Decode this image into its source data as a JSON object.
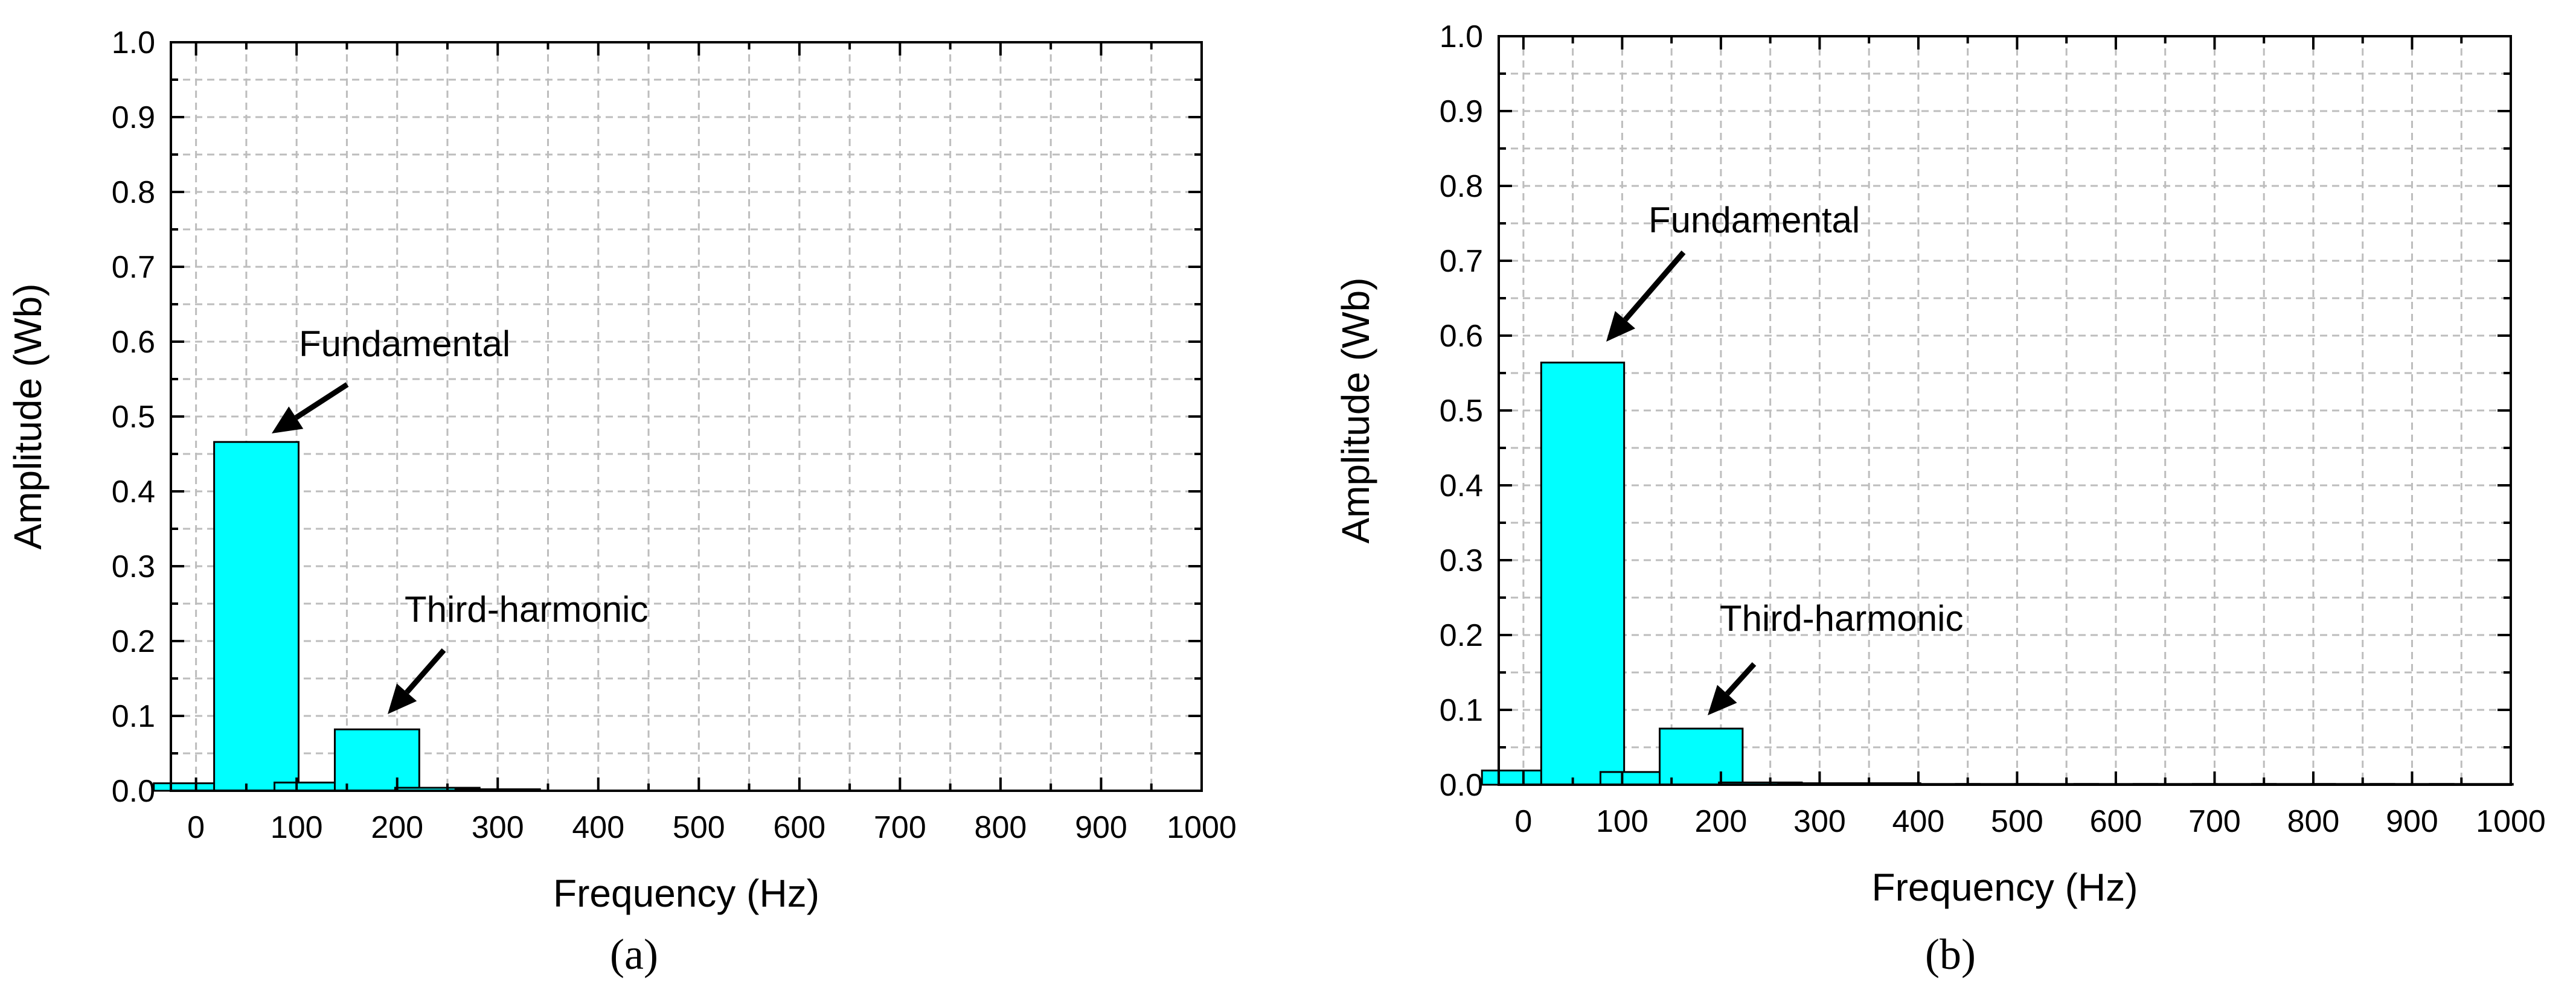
{
  "chart_data": [
    {
      "panel": "a",
      "type": "bar",
      "xlabel": "Frequency (Hz)",
      "ylabel": "Amplitude (Wb)",
      "xlim": [
        -25,
        1000
      ],
      "ylim": [
        0,
        1.0
      ],
      "x_ticks": [
        "0",
        "100",
        "200",
        "300",
        "400",
        "500",
        "600",
        "700",
        "800",
        "900",
        "1000"
      ],
      "y_ticks": [
        "0.0",
        "0.1",
        "0.2",
        "0.3",
        "0.4",
        "0.5",
        "0.6",
        "0.7",
        "0.8",
        "0.9",
        "1.0"
      ],
      "grid": true,
      "bar_color": "#00FFFF",
      "x": [
        0,
        60,
        120,
        180,
        240,
        300
      ],
      "values": [
        0.01,
        0.466,
        0.011,
        0.082,
        0.004,
        0.002
      ],
      "annotations": [
        {
          "text": "Fundamental",
          "x": 60,
          "y": 0.466
        },
        {
          "text": "Third-harmonic",
          "x": 180,
          "y": 0.082
        }
      ]
    },
    {
      "panel": "b",
      "type": "bar",
      "xlabel": "Frequency (Hz)",
      "ylabel": "Amplitude (Wb)",
      "xlim": [
        -25,
        1000
      ],
      "ylim": [
        0,
        1.0
      ],
      "x_ticks": [
        "0",
        "100",
        "200",
        "300",
        "400",
        "500",
        "600",
        "700",
        "800",
        "900",
        "1000"
      ],
      "y_ticks": [
        "0.0",
        "0.1",
        "0.2",
        "0.3",
        "0.4",
        "0.5",
        "0.6",
        "0.7",
        "0.8",
        "0.9",
        "1.0"
      ],
      "grid": true,
      "bar_color": "#00FFFF",
      "x": [
        0,
        60,
        120,
        180,
        240,
        300,
        360,
        420,
        480,
        540,
        600,
        660,
        720,
        780,
        840,
        900,
        960
      ],
      "values": [
        0.019,
        0.564,
        0.017,
        0.075,
        0.003,
        0.002,
        0.002,
        0.001,
        0.001,
        0.001,
        0.001,
        0.001,
        0.001,
        0.001,
        0.001,
        0.001,
        0.001
      ],
      "annotations": [
        {
          "text": "Fundamental",
          "x": 60,
          "y": 0.564
        },
        {
          "text": "Third-harmonic",
          "x": 180,
          "y": 0.075
        }
      ]
    }
  ],
  "panel_labels": [
    "(a)",
    "(b)"
  ]
}
